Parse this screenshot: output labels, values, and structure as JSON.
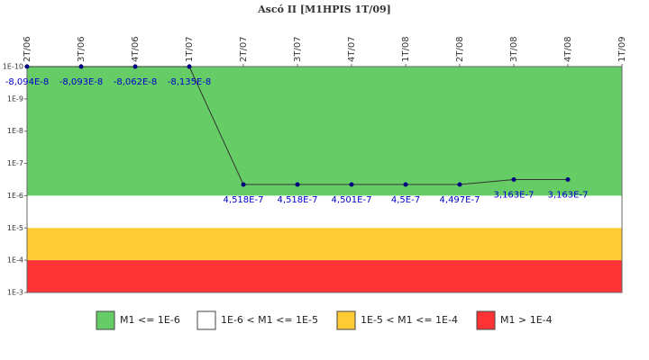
{
  "chart_data": {
    "type": "line",
    "title": "Ascó II [M1HPIS 1T/09]",
    "categories": [
      "2T/06",
      "3T/06",
      "4T/06",
      "1T/07",
      "2T/07",
      "3T/07",
      "4T/07",
      "1T/08",
      "2T/08",
      "3T/08",
      "4T/08",
      "1T/09"
    ],
    "series": [
      {
        "name": "M1",
        "color": "#000080",
        "values": [
          -8.094e-08,
          -8.093e-08,
          -8.062e-08,
          -8.135e-08,
          4.518e-07,
          4.518e-07,
          4.501e-07,
          4.5e-07,
          4.497e-07,
          3.163e-07,
          3.163e-07,
          null
        ],
        "value_labels": [
          "-8,094E-8",
          "-8,093E-8",
          "-8,062E-8",
          "-8,135E-8",
          "4,518E-7",
          "4,518E-7",
          "4,501E-7",
          "4,5E-7",
          "4,497E-7",
          "3,163E-7",
          "3,163E-7",
          null
        ]
      }
    ],
    "ylim": [
      1e-10,
      0.001
    ],
    "log_scale": true,
    "y_inverted": true,
    "yticks": [
      {
        "value": 1e-10,
        "label": "1E-10"
      },
      {
        "value": 1e-09,
        "label": "1E-9"
      },
      {
        "value": 1e-08,
        "label": "1E-8"
      },
      {
        "value": 1e-07,
        "label": "1E-7"
      },
      {
        "value": 1e-06,
        "label": "1E-6"
      },
      {
        "value": 1e-05,
        "label": "1E-5"
      },
      {
        "value": 0.0001,
        "label": "1E-4"
      },
      {
        "value": 0.001,
        "label": "1E-3"
      }
    ],
    "bands": [
      {
        "name": "M1 <= 1E-6",
        "color": "#66cc66",
        "from": 1e-10,
        "to": 1e-06
      },
      {
        "name": "1E-6 < M1 <= 1E-5",
        "color": "#ffffff",
        "from": 1e-06,
        "to": 1e-05
      },
      {
        "name": "1E-5 < M1 <= 1E-4",
        "color": "#ffcc33",
        "from": 1e-05,
        "to": 0.0001
      },
      {
        "name": "M1 > 1E-4",
        "color": "#ff3333",
        "from": 0.0001,
        "to": 0.001
      }
    ],
    "line_color": "#333333",
    "legend": "bottom"
  }
}
